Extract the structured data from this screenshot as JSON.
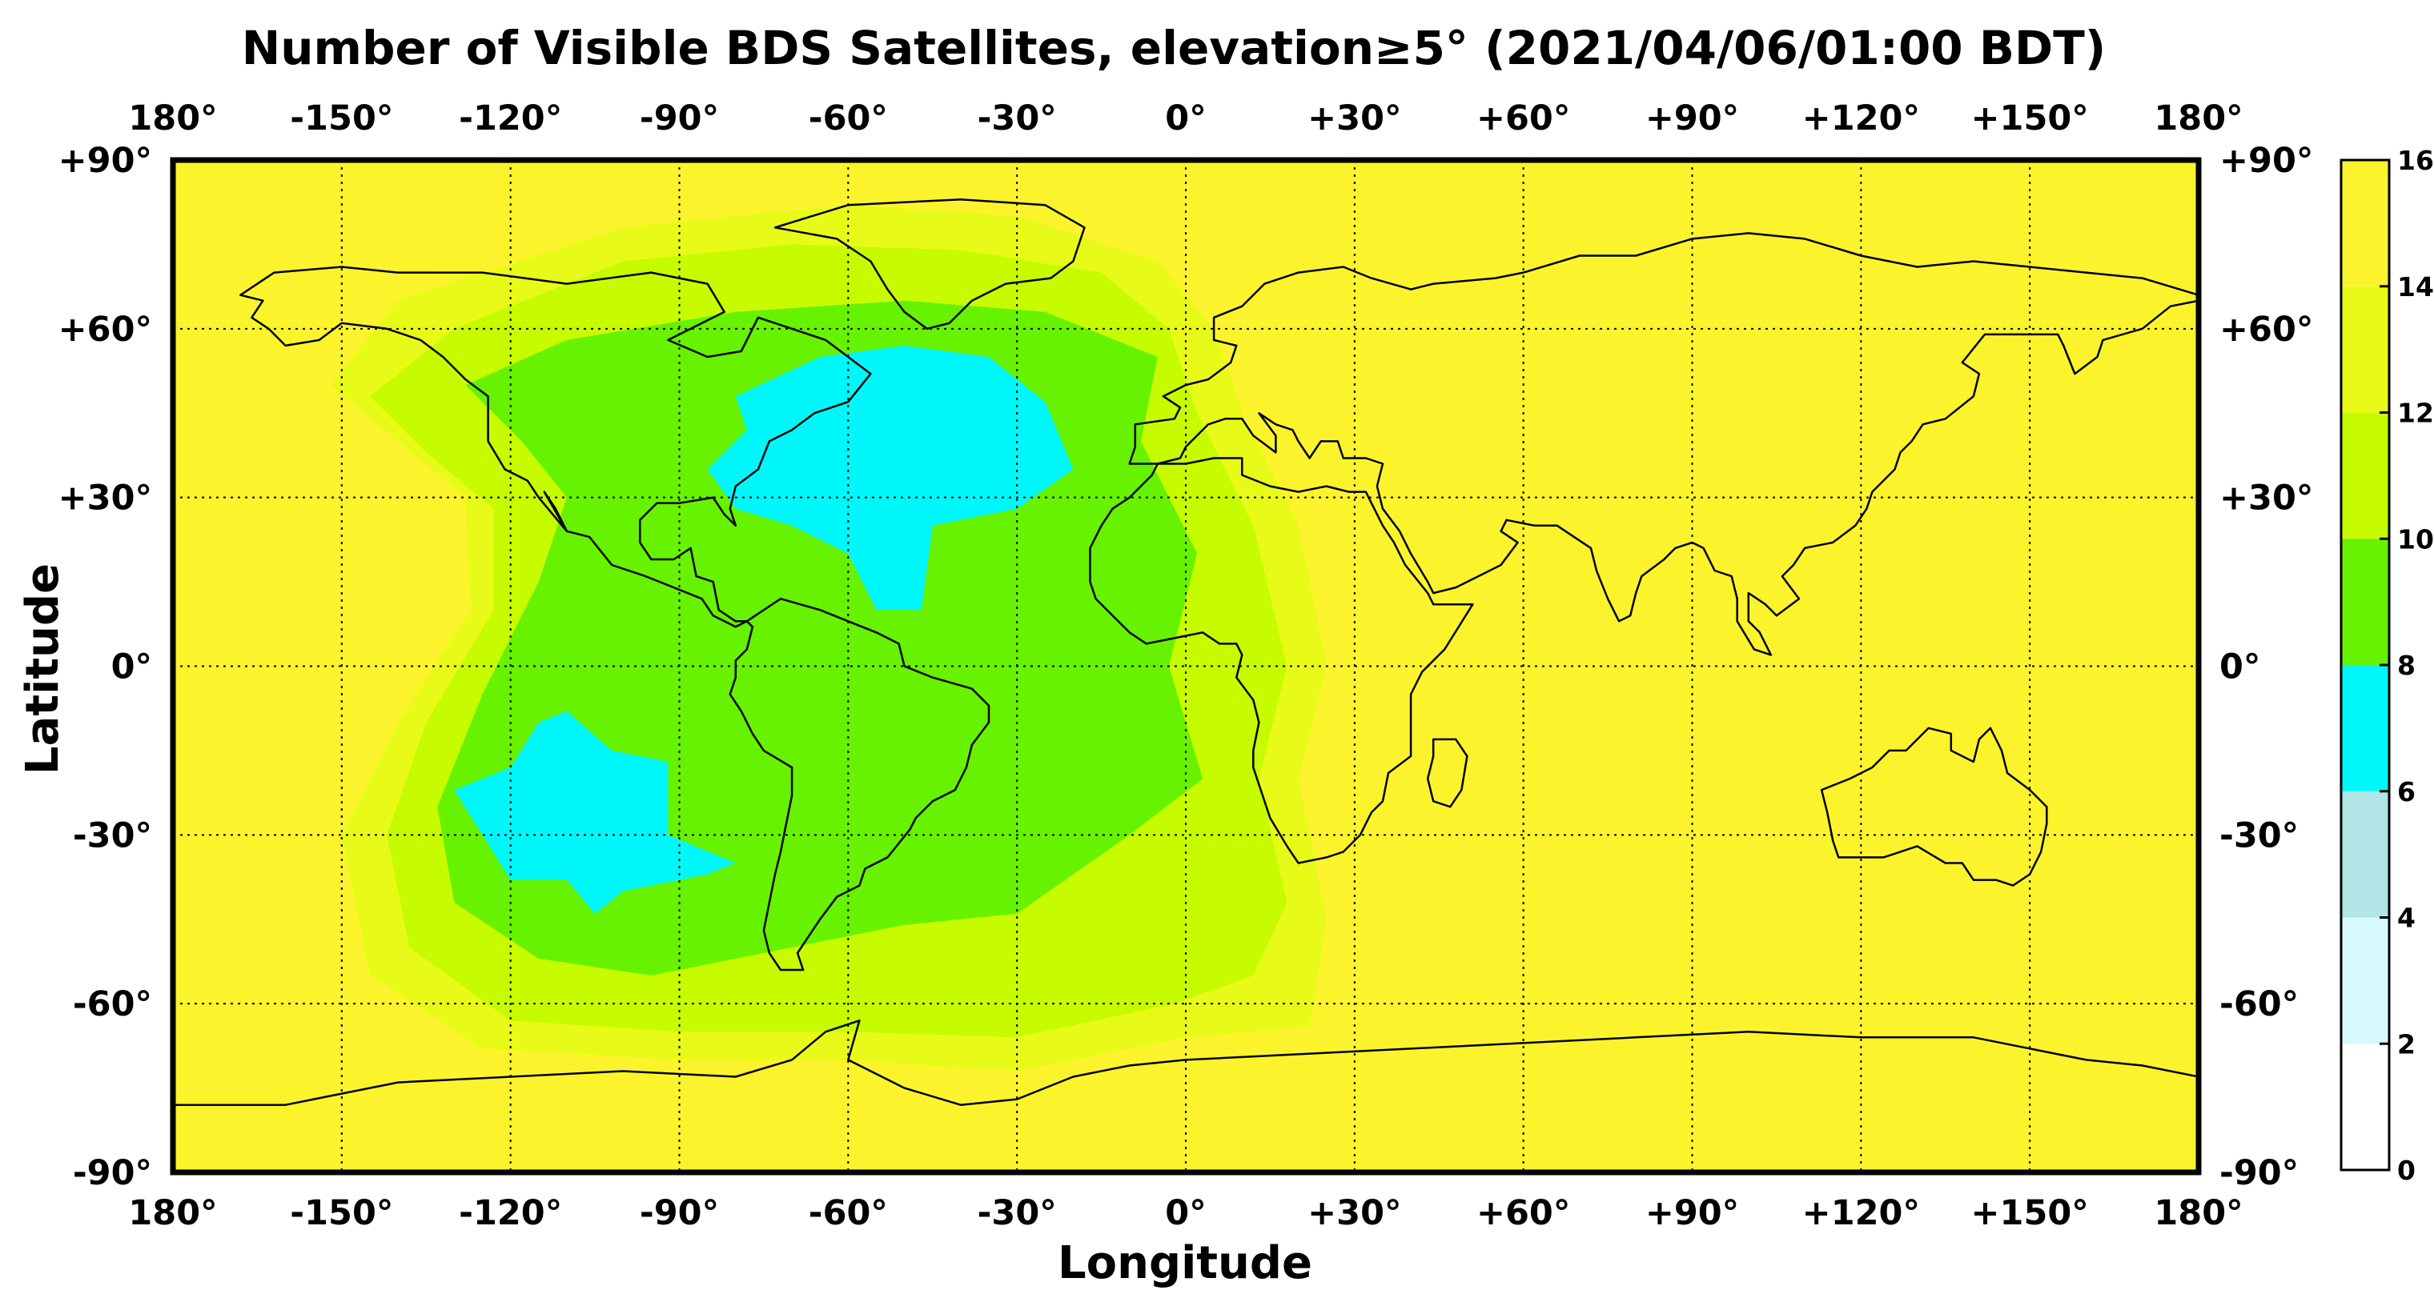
{
  "title": "Number of Visible BDS Satellites, elevation≥5° (2021/04/06/01:00 BDT)",
  "xlabel": "Longitude",
  "ylabel": "Latitude",
  "lon_ticks": [
    {
      "value": -180,
      "label": "180°"
    },
    {
      "value": -150,
      "label": "-150°"
    },
    {
      "value": -120,
      "label": "-120°"
    },
    {
      "value": -90,
      "label": "-90°"
    },
    {
      "value": -60,
      "label": "-60°"
    },
    {
      "value": -30,
      "label": "-30°"
    },
    {
      "value": 0,
      "label": "0°"
    },
    {
      "value": 30,
      "label": "+30°"
    },
    {
      "value": 60,
      "label": "+60°"
    },
    {
      "value": 90,
      "label": "+90°"
    },
    {
      "value": 120,
      "label": "+120°"
    },
    {
      "value": 150,
      "label": "+150°"
    },
    {
      "value": 180,
      "label": "180°"
    }
  ],
  "lat_ticks": [
    {
      "value": 90,
      "label": "+90°"
    },
    {
      "value": 60,
      "label": "+60°"
    },
    {
      "value": 30,
      "label": "+30°"
    },
    {
      "value": 0,
      "label": "0°"
    },
    {
      "value": -30,
      "label": "-30°"
    },
    {
      "value": -60,
      "label": "-60°"
    },
    {
      "value": -90,
      "label": "-90°"
    }
  ],
  "colorbar": {
    "range": [
      0,
      16
    ],
    "tick_labels": [
      "0",
      "2",
      "4",
      "6",
      "8",
      "10",
      "12",
      "14",
      "16"
    ],
    "bins": [
      {
        "from": 0,
        "to": 2,
        "color": "#ffffff"
      },
      {
        "from": 2,
        "to": 4,
        "color": "#d8fafc"
      },
      {
        "from": 4,
        "to": 6,
        "color": "#b2e6e6"
      },
      {
        "from": 6,
        "to": 8,
        "color": "#00f7fa"
      },
      {
        "from": 8,
        "to": 10,
        "color": "#66f200"
      },
      {
        "from": 10,
        "to": 12,
        "color": "#c7fb00"
      },
      {
        "from": 12,
        "to": 14,
        "color": "#e8fb18"
      },
      {
        "from": 14,
        "to": 16,
        "color": "#fbf42c"
      }
    ]
  },
  "chart_data": {
    "type": "heatmap",
    "quantity": "Number of Visible BDS Satellites",
    "extent": {
      "lon": [
        -180,
        180
      ],
      "lat": [
        -90,
        90
      ]
    },
    "grid": "dotted",
    "background_value_range": [
      14,
      16
    ],
    "regions": [
      {
        "name": "yellow-green halo west",
        "value_range": [
          12,
          14
        ],
        "polygon": [
          [
            -152,
            50
          ],
          [
            -140,
            40
          ],
          [
            -128,
            30
          ],
          [
            -127,
            10
          ],
          [
            -140,
            -10
          ],
          [
            -150,
            -30
          ],
          [
            -145,
            -55
          ],
          [
            -125,
            -68
          ],
          [
            -90,
            -70
          ],
          [
            -60,
            -70
          ],
          [
            -30,
            -72
          ],
          [
            0,
            -66
          ],
          [
            22,
            -64
          ],
          [
            25,
            -45
          ],
          [
            20,
            -20
          ],
          [
            25,
            0
          ],
          [
            20,
            25
          ],
          [
            10,
            45
          ],
          [
            5,
            60
          ],
          [
            -5,
            72
          ],
          [
            -30,
            80
          ],
          [
            -60,
            82
          ],
          [
            -100,
            78
          ],
          [
            -140,
            65
          ]
        ]
      },
      {
        "name": "light-green band",
        "value_range": [
          10,
          12
        ],
        "polygon": [
          [
            -145,
            48
          ],
          [
            -135,
            38
          ],
          [
            -123,
            28
          ],
          [
            -123,
            10
          ],
          [
            -135,
            -10
          ],
          [
            -142,
            -30
          ],
          [
            -138,
            -50
          ],
          [
            -120,
            -63
          ],
          [
            -90,
            -65
          ],
          [
            -60,
            -65
          ],
          [
            -30,
            -66
          ],
          [
            -2,
            -60
          ],
          [
            12,
            -55
          ],
          [
            18,
            -42
          ],
          [
            13,
            -20
          ],
          [
            18,
            0
          ],
          [
            12,
            25
          ],
          [
            2,
            45
          ],
          [
            -3,
            60
          ],
          [
            -15,
            70
          ],
          [
            -40,
            74
          ],
          [
            -70,
            75
          ],
          [
            -100,
            72
          ],
          [
            -130,
            60
          ]
        ]
      },
      {
        "name": "green band",
        "value_range": [
          8,
          10
        ],
        "polygon": [
          [
            -128,
            50
          ],
          [
            -118,
            40
          ],
          [
            -110,
            30
          ],
          [
            -115,
            15
          ],
          [
            -125,
            -5
          ],
          [
            -133,
            -25
          ],
          [
            -130,
            -42
          ],
          [
            -115,
            -52
          ],
          [
            -95,
            -55
          ],
          [
            -70,
            -50
          ],
          [
            -50,
            -46
          ],
          [
            -30,
            -44
          ],
          [
            -10,
            -30
          ],
          [
            3,
            -20
          ],
          [
            -3,
            0
          ],
          [
            2,
            20
          ],
          [
            -8,
            40
          ],
          [
            -5,
            55
          ],
          [
            -25,
            63
          ],
          [
            -50,
            65
          ],
          [
            -80,
            63
          ],
          [
            -110,
            58
          ]
        ]
      },
      {
        "name": "cyan north atlantic",
        "value_range": [
          6,
          8
        ],
        "polygon": [
          [
            -85,
            35
          ],
          [
            -78,
            42
          ],
          [
            -80,
            48
          ],
          [
            -65,
            55
          ],
          [
            -50,
            57
          ],
          [
            -35,
            55
          ],
          [
            -25,
            47
          ],
          [
            -20,
            35
          ],
          [
            -30,
            28
          ],
          [
            -45,
            25
          ],
          [
            -47,
            10
          ],
          [
            -55,
            10
          ],
          [
            -60,
            20
          ],
          [
            -70,
            25
          ],
          [
            -80,
            28
          ]
        ]
      },
      {
        "name": "cyan south pacific",
        "value_range": [
          6,
          8
        ],
        "polygon": [
          [
            -130,
            -22
          ],
          [
            -125,
            -30
          ],
          [
            -120,
            -38
          ],
          [
            -110,
            -38
          ],
          [
            -105,
            -44
          ],
          [
            -100,
            -40
          ],
          [
            -85,
            -37
          ],
          [
            -80,
            -35
          ],
          [
            -92,
            -30
          ],
          [
            -92,
            -17
          ],
          [
            -102,
            -15
          ],
          [
            -110,
            -8
          ],
          [
            -115,
            -10
          ],
          [
            -120,
            -18
          ]
        ]
      }
    ]
  }
}
